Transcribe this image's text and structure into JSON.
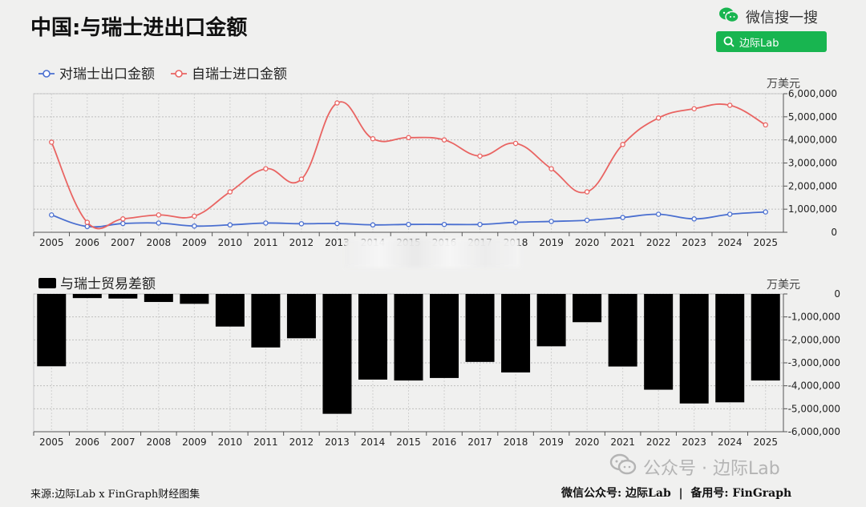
{
  "header": {
    "title": "中国:与瑞士进出口金额",
    "wechat_label": "微信搜一搜",
    "search_text": "边际Lab"
  },
  "footer": {
    "source": "来源:边际Lab x FinGraph财经图集",
    "account": "微信公众号: 边际Lab  |  备用号: FinGraph",
    "watermark": "公众号 · 边际Lab"
  },
  "colors": {
    "export": "#4a6fd0",
    "import": "#e96462",
    "balance": "#000000",
    "brand_green": "#18b550"
  },
  "chart_data": [
    {
      "type": "line",
      "unit": "万美元",
      "categories": [
        "2005",
        "2006",
        "2007",
        "2008",
        "2009",
        "2010",
        "2011",
        "2012",
        "2013",
        "2014",
        "2015",
        "2016",
        "2017",
        "2018",
        "2019",
        "2020",
        "2021",
        "2022",
        "2023",
        "2024",
        "2025"
      ],
      "series": [
        {
          "name": "对瑞士出口金额",
          "values": [
            750000,
            250000,
            380000,
            400000,
            270000,
            320000,
            400000,
            370000,
            380000,
            320000,
            340000,
            340000,
            340000,
            430000,
            470000,
            520000,
            640000,
            780000,
            580000,
            780000,
            880000
          ]
        },
        {
          "name": "自瑞士进口金额",
          "values": [
            3900000,
            430000,
            580000,
            750000,
            700000,
            1750000,
            2750000,
            2300000,
            5600000,
            4050000,
            4100000,
            4000000,
            3300000,
            3850000,
            2750000,
            1750000,
            3800000,
            4950000,
            5350000,
            5500000,
            4650000
          ]
        }
      ],
      "ylim": [
        0,
        6000000
      ],
      "yticks": [
        "0",
        "1,000,000",
        "2,000,000",
        "3,000,000",
        "4,000,000",
        "5,000,000",
        "6,000,000"
      ],
      "legend": "top-left",
      "grid": true
    },
    {
      "type": "bar",
      "unit": "万美元",
      "categories": [
        "2005",
        "2006",
        "2007",
        "2008",
        "2009",
        "2010",
        "2011",
        "2012",
        "2013",
        "2014",
        "2015",
        "2016",
        "2017",
        "2018",
        "2019",
        "2020",
        "2021",
        "2022",
        "2023",
        "2024",
        "2025"
      ],
      "series": [
        {
          "name": "与瑞士贸易差额",
          "values": [
            -3150000,
            -180000,
            -200000,
            -350000,
            -430000,
            -1420000,
            -2330000,
            -1930000,
            -5220000,
            -3730000,
            -3770000,
            -3660000,
            -2960000,
            -3420000,
            -2280000,
            -1230000,
            -3160000,
            -4170000,
            -4770000,
            -4720000,
            -3770000
          ]
        }
      ],
      "ylim": [
        -6000000,
        0
      ],
      "yticks": [
        "0",
        "-1,000,000",
        "-2,000,000",
        "-3,000,000",
        "-4,000,000",
        "-5,000,000",
        "-6,000,000"
      ],
      "legend": "top-left",
      "grid": true
    }
  ]
}
